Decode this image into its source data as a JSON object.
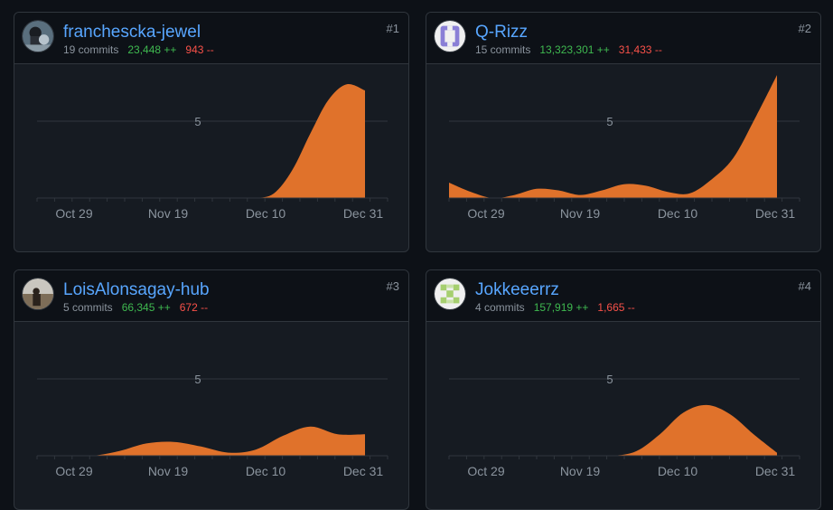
{
  "colors": {
    "page_bg": "#0d1117",
    "card_bg": "#161b22",
    "link": "#58a6ff",
    "added": "#3fb950",
    "deleted": "#f85149",
    "area": "#e0722b"
  },
  "contributors": [
    {
      "rank": "#1",
      "username": "franchescka-jewel",
      "commits": "19 commits",
      "additions": "23,448 ++",
      "deletions": "943 --",
      "avatar": "photo-avatar",
      "chart_data": {
        "type": "area",
        "xticks": [
          "Oct 29",
          "Nov 19",
          "Dec 10",
          "Dec 31"
        ],
        "ytick": "5",
        "y": [
          0,
          0,
          0,
          0,
          0,
          0,
          0,
          0,
          0,
          0,
          0,
          0,
          0,
          0.3,
          1.8,
          4.2,
          6.4,
          7.4,
          7
        ]
      }
    },
    {
      "rank": "#2",
      "username": "Q-Rizz",
      "commits": "15 commits",
      "additions": "13,323,301 ++",
      "deletions": "31,433 --",
      "avatar": "identicon-purple",
      "chart_data": {
        "type": "area",
        "xticks": [
          "Oct 29",
          "Nov 19",
          "Dec 10",
          "Dec 31"
        ],
        "ytick": "5",
        "y": [
          1,
          0.4,
          0,
          0.2,
          0.6,
          0.5,
          0.2,
          0.5,
          0.9,
          0.8,
          0.4,
          0.3,
          1.2,
          2.6,
          5.2,
          8
        ]
      }
    },
    {
      "rank": "#3",
      "username": "LoisAlonsagay-hub",
      "commits": "5 commits",
      "additions": "66,345 ++",
      "deletions": "672 --",
      "avatar": "sunset-avatar",
      "chart_data": {
        "type": "area",
        "xticks": [
          "Oct 29",
          "Nov 19",
          "Dec 10",
          "Dec 31"
        ],
        "ytick": "5",
        "y": [
          0,
          0,
          0,
          0.3,
          0.8,
          0.9,
          0.6,
          0.2,
          0.4,
          1.3,
          1.9,
          1.4,
          1.4
        ]
      }
    },
    {
      "rank": "#4",
      "username": "Jokkeeerrz",
      "commits": "4 commits",
      "additions": "157,919 ++",
      "deletions": "1,665 --",
      "avatar": "identicon-green",
      "chart_data": {
        "type": "area",
        "xticks": [
          "Oct 29",
          "Nov 19",
          "Dec 10",
          "Dec 31"
        ],
        "ytick": "5",
        "y": [
          0,
          0,
          0,
          0,
          0,
          0,
          0,
          0,
          0.3,
          1.4,
          2.8,
          3.3,
          2.7,
          1.4,
          0.2
        ]
      }
    }
  ]
}
